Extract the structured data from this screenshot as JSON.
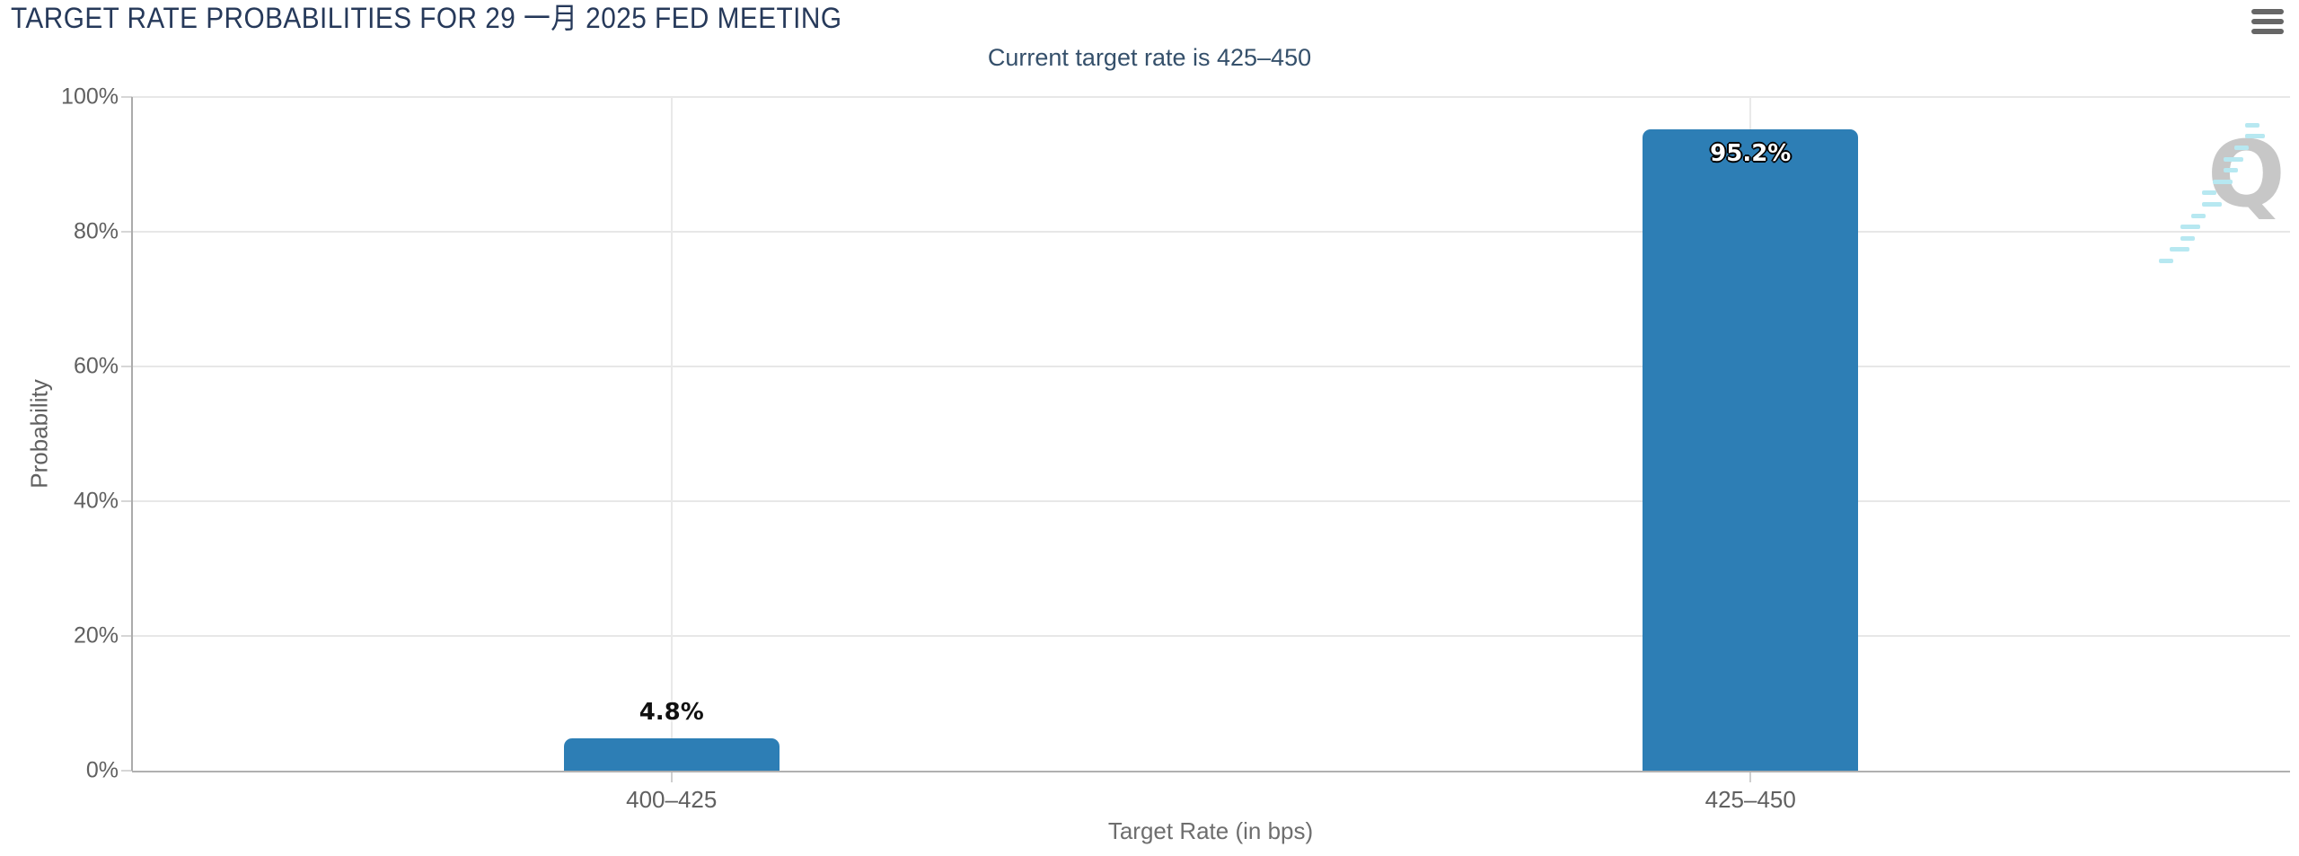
{
  "chart_data": {
    "type": "bar",
    "title": "TARGET RATE PROBABILITIES FOR 29 一月 2025 FED MEETING",
    "subtitle": "Current target rate is 425–450",
    "categories": [
      "400–425",
      "425–450"
    ],
    "values": [
      4.8,
      95.2
    ],
    "value_labels": [
      "4.8%",
      "95.2%"
    ],
    "xlabel": "Target Rate (in bps)",
    "ylabel": "Probability",
    "ylim": [
      0,
      100
    ],
    "yticks": [
      0,
      20,
      40,
      60,
      80,
      100
    ],
    "ytick_labels": [
      "0%",
      "20%",
      "40%",
      "60%",
      "80%",
      "100%"
    ],
    "grid": true,
    "legend": "none",
    "bar_color": "#2d7eb5"
  },
  "menu": {
    "icon": "hamburger-icon"
  },
  "watermark": {
    "letter": "Q",
    "q_color": "#c7c7c7",
    "streak_color": "#b7e8f1"
  },
  "colors": {
    "title": "#26395a",
    "subtitle": "#35506b",
    "axis_text": "#606060",
    "gridline": "#e7e7e7",
    "axis_line": "#ababab",
    "menu_icon": "#666666"
  }
}
